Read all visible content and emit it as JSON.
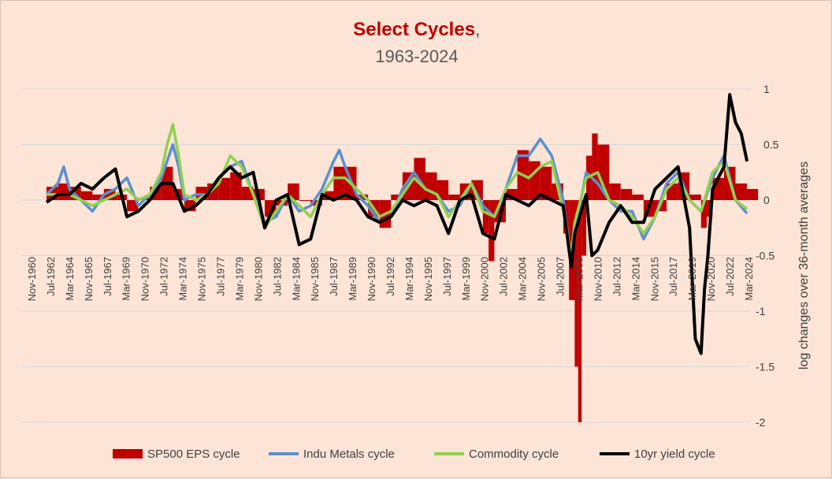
{
  "chart_data": {
    "type": "line",
    "title": "Select Cycles",
    "title_suffix": ",",
    "subtitle": "1963-2024",
    "ylabel": "log changes over 36-month averages",
    "ylim": [
      -2,
      1
    ],
    "y_ticks": [
      "1",
      "0.5",
      "0",
      "-0.5",
      "-1",
      "-1.5",
      "-2"
    ],
    "y_axis_side": "right",
    "grid": true,
    "legend_position": "bottom",
    "x_tick_labels": [
      "Nov-1960",
      "Jul-1962",
      "Mar-1964",
      "Nov-1965",
      "Jul-1967",
      "Mar-1969",
      "Nov-1970",
      "Jul-1972",
      "Mar-1974",
      "Nov-1975",
      "Jul-1977",
      "Mar-1979",
      "Nov-1980",
      "Jul-1982",
      "Mar-1984",
      "Nov-1985",
      "Jul-1987",
      "Mar-1989",
      "Nov-1990",
      "Jul-1992",
      "Mar-1994",
      "Nov-1995",
      "Jul-1997",
      "Mar-1999",
      "Nov-2000",
      "Jul-2002",
      "Mar-2004",
      "Nov-2005",
      "Jul-2007",
      "Mar-2009",
      "Nov-2010",
      "Jul-2012",
      "Mar-2014",
      "Nov-2015",
      "Jul-2017",
      "Mar-2019",
      "Nov-2020",
      "Jul-2022",
      "Mar-2024"
    ],
    "x_range": [
      1960.8,
      2024.2
    ],
    "series": [
      {
        "name": "SP500 EPS cycle",
        "kind": "bar",
        "color": "#c00000",
        "x": [
          1963,
          1964,
          1965,
          1966,
          1967,
          1968,
          1969,
          1970,
          1971,
          1972,
          1973,
          1974,
          1975,
          1976,
          1977,
          1978,
          1979,
          1980,
          1981,
          1982,
          1983,
          1984,
          1985,
          1986,
          1987,
          1988,
          1989,
          1990,
          1991,
          1992,
          1993,
          1994,
          1995,
          1996,
          1997,
          1998,
          1999,
          2000,
          2001,
          2001.5,
          2002,
          2003,
          2004,
          2005,
          2006,
          2007,
          2008,
          2008.5,
          2009,
          2009.3,
          2009.6,
          2010,
          2010.5,
          2011,
          2012,
          2013,
          2014,
          2015,
          2016,
          2017,
          2018,
          2019,
          2020,
          2020.5,
          2021,
          2022,
          2023,
          2024
        ],
        "y": [
          0.12,
          0.15,
          0.12,
          0.08,
          0.05,
          0.1,
          0.05,
          -0.1,
          0.02,
          0.12,
          0.3,
          0.1,
          -0.1,
          0.12,
          0.15,
          0.2,
          0.25,
          0.12,
          0.1,
          -0.15,
          -0.05,
          0.15,
          0.0,
          -0.05,
          0.08,
          0.3,
          0.3,
          0.05,
          -0.15,
          -0.25,
          0.05,
          0.25,
          0.38,
          0.25,
          0.18,
          0.05,
          0.15,
          0.18,
          -0.3,
          -0.55,
          -0.2,
          0.1,
          0.45,
          0.35,
          0.3,
          0.15,
          -0.3,
          -0.9,
          -1.5,
          -2.0,
          -0.5,
          0.4,
          0.6,
          0.5,
          0.15,
          0.1,
          0.05,
          -0.15,
          -0.1,
          0.15,
          0.25,
          0.05,
          -0.25,
          -0.15,
          0.2,
          0.3,
          0.15,
          0.1
        ]
      },
      {
        "name": "Indu Metals cycle",
        "kind": "line",
        "color": "#5b8fd1",
        "x": [
          1963,
          1964,
          1964.5,
          1965,
          1966,
          1967,
          1968,
          1969,
          1970,
          1971,
          1972,
          1973,
          1974,
          1974.5,
          1975,
          1976,
          1977,
          1978,
          1979,
          1980,
          1981,
          1982,
          1983,
          1984,
          1985,
          1986,
          1987,
          1988,
          1988.5,
          1989,
          1990,
          1991,
          1992,
          1993,
          1994,
          1995,
          1996,
          1997,
          1998,
          1999,
          2000,
          2001,
          2002,
          2003,
          2004,
          2005,
          2006,
          2007,
          2008,
          2008.7,
          2009,
          2010,
          2011,
          2012,
          2013,
          2014,
          2015,
          2016,
          2017,
          2018,
          2019,
          2020,
          2021,
          2022,
          2023,
          2024
        ],
        "y": [
          0.05,
          0.15,
          0.3,
          0.1,
          0.0,
          -0.1,
          0.05,
          0.1,
          0.2,
          -0.05,
          0.05,
          0.2,
          0.5,
          0.3,
          0.0,
          0.05,
          0.05,
          0.2,
          0.3,
          0.35,
          0.05,
          -0.2,
          -0.15,
          0.05,
          -0.1,
          -0.05,
          0.1,
          0.35,
          0.45,
          0.3,
          0.05,
          -0.05,
          -0.2,
          -0.15,
          0.1,
          0.25,
          0.1,
          0.05,
          -0.1,
          -0.05,
          0.15,
          -0.05,
          -0.15,
          0.1,
          0.4,
          0.4,
          0.55,
          0.4,
          0.0,
          -0.55,
          -0.3,
          0.25,
          0.15,
          0.0,
          -0.1,
          -0.1,
          -0.35,
          -0.15,
          0.15,
          0.25,
          0.0,
          -0.1,
          0.2,
          0.4,
          0.0,
          -0.12
        ]
      },
      {
        "name": "Commodity cycle",
        "kind": "line",
        "color": "#92d050",
        "x": [
          1963,
          1964,
          1965,
          1966,
          1967,
          1968,
          1969,
          1970,
          1971,
          1972,
          1973,
          1973.5,
          1974,
          1974.5,
          1975,
          1976,
          1977,
          1978,
          1979,
          1980,
          1981,
          1982,
          1983,
          1984,
          1985,
          1986,
          1987,
          1988,
          1989,
          1990,
          1991,
          1992,
          1993,
          1994,
          1995,
          1996,
          1997,
          1998,
          1999,
          2000,
          2001,
          2002,
          2003,
          2004,
          2005,
          2006,
          2007,
          2008,
          2008.7,
          2009,
          2010,
          2011,
          2012,
          2013,
          2014,
          2015,
          2016,
          2017,
          2018,
          2019,
          2020,
          2021,
          2022,
          2023,
          2024
        ],
        "y": [
          0.05,
          0.05,
          0.05,
          0.0,
          -0.05,
          0.0,
          0.05,
          0.1,
          0.0,
          0.05,
          0.25,
          0.5,
          0.68,
          0.4,
          0.05,
          0.0,
          0.05,
          0.15,
          0.4,
          0.3,
          0.05,
          -0.25,
          -0.1,
          0.05,
          -0.05,
          -0.15,
          0.05,
          0.2,
          0.2,
          0.1,
          0.0,
          -0.15,
          -0.1,
          0.05,
          0.2,
          0.1,
          0.05,
          -0.15,
          0.0,
          0.15,
          -0.1,
          -0.15,
          0.1,
          0.25,
          0.2,
          0.3,
          0.35,
          -0.1,
          -0.5,
          -0.2,
          0.2,
          0.25,
          0.0,
          -0.05,
          -0.15,
          -0.3,
          -0.15,
          0.1,
          0.2,
          0.0,
          -0.1,
          0.25,
          0.35,
          0.0,
          -0.08
        ]
      },
      {
        "name": "10yr yield cycle",
        "kind": "line",
        "color": "#000000",
        "x": [
          1963,
          1964,
          1965,
          1966,
          1967,
          1968,
          1969,
          1970,
          1971,
          1972,
          1973,
          1974,
          1975,
          1976,
          1977,
          1978,
          1979,
          1980,
          1981,
          1982,
          1983,
          1984,
          1985,
          1986,
          1987,
          1988,
          1989,
          1990,
          1991,
          1992,
          1993,
          1994,
          1995,
          1996,
          1997,
          1998,
          1999,
          2000,
          2001,
          2002,
          2003,
          2004,
          2005,
          2006,
          2007,
          2008,
          2008.7,
          2009,
          2010,
          2010.5,
          2011,
          2012,
          2013,
          2014,
          2015,
          2016,
          2017,
          2018,
          2019,
          2019.5,
          2020,
          2020.3,
          2020.6,
          2021,
          2022,
          2022.5,
          2023,
          2023.5,
          2024
        ],
        "y": [
          -0.02,
          0.05,
          0.05,
          0.15,
          0.1,
          0.2,
          0.28,
          -0.15,
          -0.1,
          0.0,
          0.15,
          0.15,
          -0.1,
          -0.05,
          0.05,
          0.2,
          0.3,
          0.2,
          0.25,
          -0.25,
          0.0,
          0.05,
          -0.4,
          -0.35,
          0.05,
          0.0,
          0.05,
          0.0,
          -0.15,
          -0.2,
          -0.15,
          0.0,
          -0.05,
          0.0,
          -0.05,
          -0.3,
          0.0,
          0.05,
          -0.3,
          -0.35,
          0.05,
          0.0,
          -0.05,
          0.05,
          0.0,
          -0.05,
          -0.6,
          -0.3,
          0.05,
          -0.5,
          -0.45,
          -0.2,
          -0.05,
          -0.2,
          -0.2,
          0.1,
          0.2,
          0.3,
          -0.25,
          -1.25,
          -1.38,
          -0.8,
          -0.5,
          0.1,
          0.3,
          0.95,
          0.7,
          0.6,
          0.35
        ]
      }
    ]
  }
}
